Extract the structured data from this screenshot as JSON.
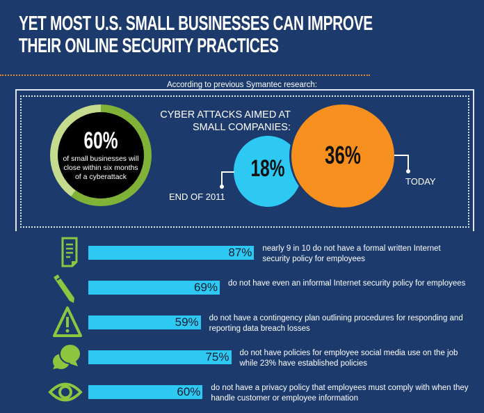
{
  "header": {
    "title_line1": "YET MOST U.S. SMALL BUSINESSES CAN IMPROVE",
    "title_line2": "THEIR ONLINE SECURITY PRACTICES"
  },
  "research": {
    "intro": "According to previous Symantec research:",
    "closure": {
      "pct": "60%",
      "value": 60,
      "text": "of small businesses will close within six months of a cyberattack"
    },
    "attacks": {
      "title_line1": "CYBER ATTACKS AIMED AT",
      "title_line2": "SMALL COMPANIES:",
      "past": {
        "pct": "18%",
        "label": "END OF 2011"
      },
      "today": {
        "pct": "36%",
        "label": "TODAY"
      }
    }
  },
  "colors": {
    "background": "#1c3a6c",
    "bar": "#2ec9f3",
    "icon": "#8dc63f",
    "orange": "#f7901e",
    "ring": "#7fb236"
  },
  "chart_data": {
    "type": "bar",
    "orientation": "horizontal",
    "categories": [
      "document",
      "pencil",
      "warning",
      "chat",
      "eye"
    ],
    "values": [
      87,
      69,
      59,
      75,
      60
    ],
    "labels": [
      "87%",
      "69%",
      "59%",
      "75%",
      "60%"
    ],
    "descriptions": [
      "nearly 9 in 10 do not have a formal written Internet security policy for employees",
      "do not have even an informal Internet security policy for employees",
      "do not have a contingency plan outlining procedures for responding and reporting data breach losses",
      "do not have policies for employee social media use on the job while 23% have established policies",
      "do not have a privacy policy that employees must comply with when they handle customer or employee information"
    ],
    "xlim": [
      0,
      100
    ]
  }
}
